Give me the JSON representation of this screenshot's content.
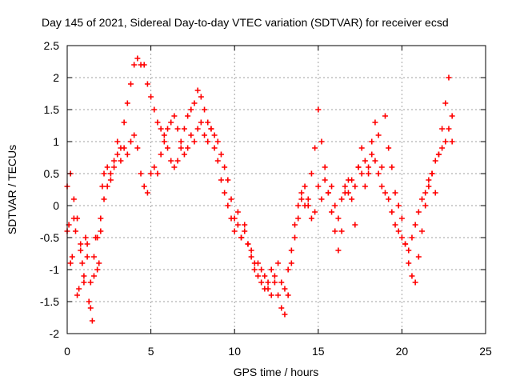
{
  "chart_data": {
    "type": "scatter",
    "title": "Day 145 of 2021, Sidereal Day-to-day VTEC variation (SDTVAR) for receiver ecsd",
    "xlabel": "GPS time / hours",
    "ylabel": "SDTVAR / TECUs",
    "xlim": [
      0,
      25
    ],
    "ylim": [
      -2,
      2.5
    ],
    "xticks": [
      0,
      5,
      10,
      15,
      20,
      25
    ],
    "yticks": [
      -2,
      -1.5,
      -1,
      -0.5,
      0,
      0.5,
      1,
      1.5,
      2,
      2.5
    ],
    "grid": true,
    "marker": "plus",
    "color": "#ff0000",
    "series": [
      {
        "x": [
          0.0,
          0.1,
          0.2,
          0.3,
          0.4,
          0.5,
          0.6,
          0.7,
          0.8,
          0.9,
          1.0,
          1.1,
          1.2,
          1.3,
          1.4,
          1.5,
          1.6,
          1.7,
          1.8,
          1.9,
          2.0,
          2.1,
          2.2,
          2.4,
          2.6,
          2.8,
          3.0,
          3.2,
          3.4,
          3.6,
          3.8,
          4.0,
          4.2,
          4.4,
          4.6,
          4.8,
          5.0,
          5.2,
          5.4,
          5.6,
          5.8,
          6.0,
          6.2,
          6.4,
          6.6,
          6.8,
          7.0,
          7.2,
          7.4,
          7.6,
          7.8,
          8.0,
          8.2,
          8.4,
          8.6,
          8.8,
          9.0,
          9.2,
          9.4,
          9.6,
          9.8,
          10.0,
          10.2,
          10.4,
          10.6,
          10.8,
          11.0,
          11.2,
          11.4,
          11.6,
          11.8,
          12.0,
          12.2,
          12.4,
          12.6,
          12.8,
          13.0,
          13.2,
          13.4,
          13.6,
          13.8,
          14.0,
          14.2,
          14.4,
          14.6,
          14.8,
          15.0,
          15.2,
          15.4,
          15.6,
          15.8,
          16.0,
          16.2,
          16.4,
          16.6,
          16.8,
          17.0,
          17.2,
          17.4,
          17.6,
          17.8,
          18.0,
          18.2,
          18.4,
          18.6,
          18.8,
          19.0,
          19.2,
          19.4,
          19.6,
          19.8,
          20.0,
          20.2,
          20.4,
          20.6,
          20.8,
          21.0,
          21.2,
          21.4,
          21.6,
          21.8,
          22.0,
          22.2,
          22.4,
          22.6,
          22.8,
          23.0
        ],
        "y": [
          0.3,
          -0.3,
          0.5,
          -0.8,
          0.1,
          -0.4,
          -0.2,
          -1.3,
          -0.6,
          -0.9,
          -1.2,
          -0.5,
          -0.8,
          -1.5,
          -1.2,
          -1.8,
          -1.1,
          -0.5,
          -1.0,
          -0.9,
          -0.4,
          0.3,
          0.5,
          0.6,
          0.5,
          0.7,
          1.0,
          0.9,
          1.3,
          1.6,
          1.9,
          2.2,
          2.3,
          2.2,
          2.2,
          1.9,
          1.7,
          1.5,
          1.3,
          1.2,
          1.1,
          0.9,
          0.7,
          0.6,
          0.7,
          0.9,
          1.2,
          1.4,
          1.5,
          1.6,
          1.8,
          1.7,
          1.5,
          1.3,
          1.2,
          1.1,
          1.0,
          0.8,
          0.6,
          0.4,
          0.1,
          -0.2,
          -0.1,
          -0.5,
          -0.3,
          -0.6,
          -0.8,
          -1.0,
          -0.9,
          -1.2,
          -1.1,
          -1.3,
          -1.0,
          -1.2,
          -1.4,
          -1.6,
          -1.7,
          -1.4,
          -0.9,
          -0.5,
          -0.2,
          0.1,
          0.3,
          0.0,
          0.5,
          0.9,
          1.5,
          1.0,
          0.6,
          0.2,
          -0.1,
          -0.4,
          -0.7,
          -0.4,
          0.2,
          0.4,
          0.1,
          -0.3,
          0.6,
          0.9,
          0.3,
          0.5,
          1.0,
          1.3,
          1.1,
          0.6,
          1.4,
          0.9,
          0.6,
          0.2,
          0.0,
          -0.2,
          -0.6,
          -0.9,
          -1.1,
          -1.2,
          -0.8,
          -0.4,
          0.0,
          0.3,
          0.5,
          0.2,
          0.8,
          1.2,
          1.6,
          2.0,
          1.4
        ]
      },
      {
        "x": [
          0.0,
          0.2,
          0.4,
          0.6,
          0.8,
          1.0,
          1.2,
          1.4,
          1.6,
          1.8,
          2.0,
          2.2,
          2.4,
          2.6,
          2.8,
          3.0,
          3.2,
          3.4,
          3.6,
          3.8,
          4.0,
          4.2,
          4.4,
          4.6,
          4.8,
          5.0,
          5.2,
          5.4,
          5.6,
          5.8,
          6.0,
          6.2,
          6.4,
          6.6,
          6.8,
          7.0,
          7.2,
          7.4,
          7.6,
          7.8,
          8.0,
          8.2,
          8.4,
          8.6,
          8.8,
          9.0,
          9.2,
          9.4,
          9.6,
          9.8,
          10.0,
          10.2,
          10.4,
          10.6,
          10.8,
          11.0,
          11.2,
          11.4,
          11.6,
          11.8,
          12.0,
          12.2,
          12.4,
          12.6,
          12.8,
          13.0,
          13.2,
          13.4,
          13.6,
          13.8,
          14.0,
          14.2,
          14.4,
          14.6,
          14.8,
          15.0,
          15.2,
          15.4,
          15.6,
          15.8,
          16.0,
          16.2,
          16.4,
          16.6,
          16.8,
          17.0,
          17.2,
          17.4,
          17.6,
          17.8,
          18.0,
          18.2,
          18.4,
          18.6,
          18.8,
          19.0,
          19.2,
          19.4,
          19.6,
          19.8,
          20.0,
          20.2,
          20.4,
          20.6,
          20.8,
          21.0,
          21.2,
          21.4,
          21.6,
          21.8,
          22.0,
          22.2,
          22.4,
          22.6,
          22.8,
          23.0
        ],
        "y": [
          -0.4,
          -0.9,
          -0.2,
          -1.4,
          -0.7,
          -1.1,
          -0.6,
          -1.6,
          -0.8,
          -0.5,
          -0.2,
          0.1,
          0.3,
          0.4,
          0.6,
          0.8,
          0.7,
          0.9,
          0.8,
          1.0,
          1.1,
          0.9,
          0.5,
          0.3,
          0.2,
          0.5,
          0.6,
          0.5,
          0.8,
          1.0,
          1.2,
          1.3,
          1.4,
          1.2,
          1.0,
          0.8,
          0.9,
          1.1,
          1.0,
          1.2,
          1.3,
          1.1,
          1.0,
          1.2,
          0.9,
          0.7,
          0.4,
          0.2,
          0.0,
          -0.2,
          -0.4,
          -0.3,
          -0.5,
          -0.4,
          -0.6,
          -0.7,
          -0.9,
          -1.1,
          -1.0,
          -1.3,
          -1.2,
          -1.4,
          -1.1,
          -0.9,
          -1.2,
          -1.3,
          -1.0,
          -0.7,
          -0.3,
          0.0,
          0.2,
          0.0,
          0.1,
          -0.2,
          -0.1,
          0.3,
          0.1,
          0.4,
          0.2,
          0.3,
          0.0,
          -0.2,
          0.1,
          0.3,
          0.2,
          0.4,
          0.3,
          0.6,
          0.5,
          0.7,
          0.6,
          0.8,
          0.7,
          0.5,
          0.3,
          0.2,
          0.1,
          -0.1,
          -0.3,
          -0.4,
          -0.5,
          -0.6,
          -0.7,
          -0.5,
          -0.3,
          -0.1,
          0.1,
          0.2,
          0.4,
          0.5,
          0.7,
          0.8,
          0.9,
          1.0,
          1.2,
          1.0
        ]
      }
    ]
  }
}
